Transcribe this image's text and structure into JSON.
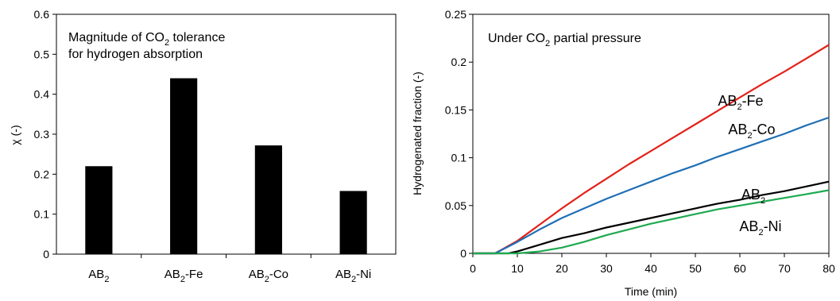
{
  "chart_data": [
    {
      "type": "bar",
      "annotation": {
        "line1_prefix": "Magnitude of CO",
        "line1_sub": "2",
        "line1_suffix": " tolerance",
        "line2": "for hydrogen absorption"
      },
      "ylabel": "χ (-)",
      "xlabel": "",
      "ylim": [
        0,
        0.6
      ],
      "yticks": [
        "0",
        "0.1",
        "0.2",
        "0.3",
        "0.4",
        "0.5",
        "0.6"
      ],
      "categories": [
        {
          "base": "AB",
          "sub": "2",
          "suffix": ""
        },
        {
          "base": "AB",
          "sub": "2",
          "suffix": "-Fe"
        },
        {
          "base": "AB",
          "sub": "2",
          "suffix": "-Co"
        },
        {
          "base": "AB",
          "sub": "2",
          "suffix": "-Ni"
        }
      ],
      "values": [
        0.22,
        0.44,
        0.272,
        0.158
      ],
      "bar_color": "#000000",
      "grid": false
    },
    {
      "type": "line",
      "annotation": {
        "prefix": "Under CO",
        "sub": "2",
        "suffix": " partial pressure"
      },
      "xlabel": "Time (min)",
      "ylabel": "Hydrogenated fraction (-)",
      "xlim": [
        0,
        80
      ],
      "ylim": [
        0,
        0.25
      ],
      "xticks": [
        "0",
        "10",
        "20",
        "30",
        "40",
        "50",
        "60",
        "70",
        "80"
      ],
      "yticks": [
        "0",
        "0.05",
        "0.1",
        "0.15",
        "0.2",
        "0.25"
      ],
      "grid": false,
      "series": [
        {
          "name": {
            "base": "AB",
            "sub": "2",
            "suffix": "-Fe"
          },
          "color": "#e32119",
          "x": [
            0,
            5,
            10,
            15,
            20,
            25,
            30,
            35,
            40,
            45,
            50,
            55,
            60,
            65,
            70,
            75,
            80
          ],
          "y": [
            0,
            0,
            0.013,
            0.03,
            0.047,
            0.063,
            0.078,
            0.093,
            0.107,
            0.121,
            0.135,
            0.149,
            0.163,
            0.177,
            0.19,
            0.204,
            0.218
          ]
        },
        {
          "name": {
            "base": "AB",
            "sub": "2",
            "suffix": "-Co"
          },
          "color": "#1f6fb5",
          "x": [
            0,
            5,
            10,
            15,
            20,
            25,
            30,
            35,
            40,
            45,
            50,
            55,
            60,
            65,
            70,
            75,
            80
          ],
          "y": [
            0,
            0,
            0.012,
            0.025,
            0.037,
            0.047,
            0.057,
            0.066,
            0.075,
            0.084,
            0.092,
            0.101,
            0.109,
            0.117,
            0.125,
            0.134,
            0.142
          ]
        },
        {
          "name": {
            "base": "AB",
            "sub": "2",
            "suffix": ""
          },
          "color": "#000000",
          "x": [
            0,
            8,
            10,
            15,
            20,
            25,
            30,
            35,
            40,
            45,
            50,
            55,
            60,
            65,
            70,
            75,
            80
          ],
          "y": [
            0,
            0,
            0.002,
            0.009,
            0.016,
            0.021,
            0.027,
            0.032,
            0.037,
            0.042,
            0.047,
            0.052,
            0.056,
            0.061,
            0.065,
            0.07,
            0.075
          ]
        },
        {
          "name": {
            "base": "AB",
            "sub": "2",
            "suffix": "-Ni"
          },
          "color": "#1eaa50",
          "x": [
            0,
            10,
            15,
            20,
            25,
            30,
            35,
            40,
            45,
            50,
            55,
            60,
            65,
            70,
            75,
            80
          ],
          "y": [
            0,
            0,
            0.002,
            0.006,
            0.012,
            0.019,
            0.025,
            0.031,
            0.036,
            0.041,
            0.046,
            0.05,
            0.054,
            0.058,
            0.062,
            0.066
          ]
        }
      ]
    }
  ]
}
